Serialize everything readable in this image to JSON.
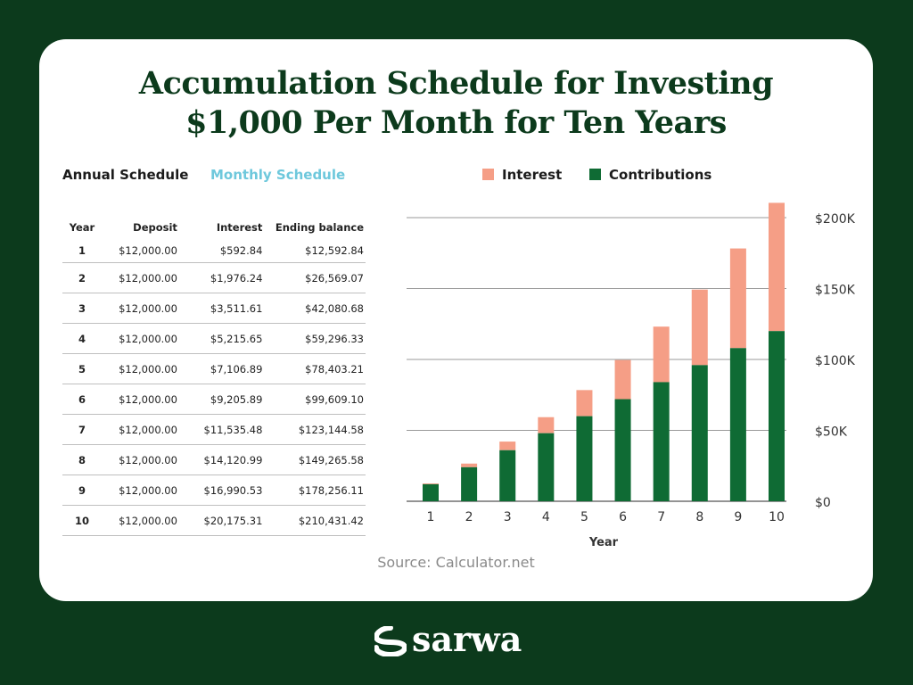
{
  "title": {
    "line1": "Accumulation Schedule for Investing",
    "line2": "$1,000 Per Month for Ten Years"
  },
  "tabs": {
    "annual": "Annual Schedule",
    "monthly": "Monthly Schedule"
  },
  "table": {
    "headers": [
      "Year",
      "Deposit",
      "Interest",
      "Ending balance"
    ],
    "rows": [
      [
        "1",
        "$12,000.00",
        "$592.84",
        "$12,592.84"
      ],
      [
        "2",
        "$12,000.00",
        "$1,976.24",
        "$26,569.07"
      ],
      [
        "3",
        "$12,000.00",
        "$3,511.61",
        "$42,080.68"
      ],
      [
        "4",
        "$12,000.00",
        "$5,215.65",
        "$59,296.33"
      ],
      [
        "5",
        "$12,000.00",
        "$7,106.89",
        "$78,403.21"
      ],
      [
        "6",
        "$12,000.00",
        "$9,205.89",
        "$99,609.10"
      ],
      [
        "7",
        "$12,000.00",
        "$11,535.48",
        "$123,144.58"
      ],
      [
        "8",
        "$12,000.00",
        "$14,120.99",
        "$149,265.58"
      ],
      [
        "9",
        "$12,000.00",
        "$16,990.53",
        "$178,256.11"
      ],
      [
        "10",
        "$12,000.00",
        "$20,175.31",
        "$210,431.42"
      ]
    ]
  },
  "chart_data": {
    "type": "bar",
    "stacked": true,
    "categories": [
      "1",
      "2",
      "3",
      "4",
      "5",
      "6",
      "7",
      "8",
      "9",
      "10"
    ],
    "series": [
      {
        "name": "Contributions",
        "color": "#0f6b34",
        "values": [
          12000,
          24000,
          36000,
          48000,
          60000,
          72000,
          84000,
          96000,
          108000,
          120000
        ]
      },
      {
        "name": "Interest",
        "color": "#f59e86",
        "values": [
          592.84,
          2569.07,
          6080.68,
          11296.33,
          18403.21,
          27609.1,
          39144.58,
          53265.58,
          70256.11,
          90431.42
        ]
      }
    ],
    "xlabel": "Year",
    "ylabel": "",
    "ylim": [
      0,
      200000
    ],
    "yticks": [
      0,
      50000,
      100000,
      150000,
      200000
    ],
    "ytick_labels": [
      "$0",
      "$50K",
      "$100K",
      "$150K",
      "$200K"
    ],
    "grid": true,
    "y_axis_side": "right",
    "legend_position": "top"
  },
  "legend": {
    "interest": "Interest",
    "contributions": "Contributions"
  },
  "source": "Source: Calculator.net",
  "brand": {
    "name": "sarwa"
  },
  "colors": {
    "background": "#0c3a1c",
    "contributions": "#0f6b34",
    "interest": "#f59e86",
    "tab_active": "#1b1b1b",
    "tab_inactive": "#6ec8dc"
  }
}
